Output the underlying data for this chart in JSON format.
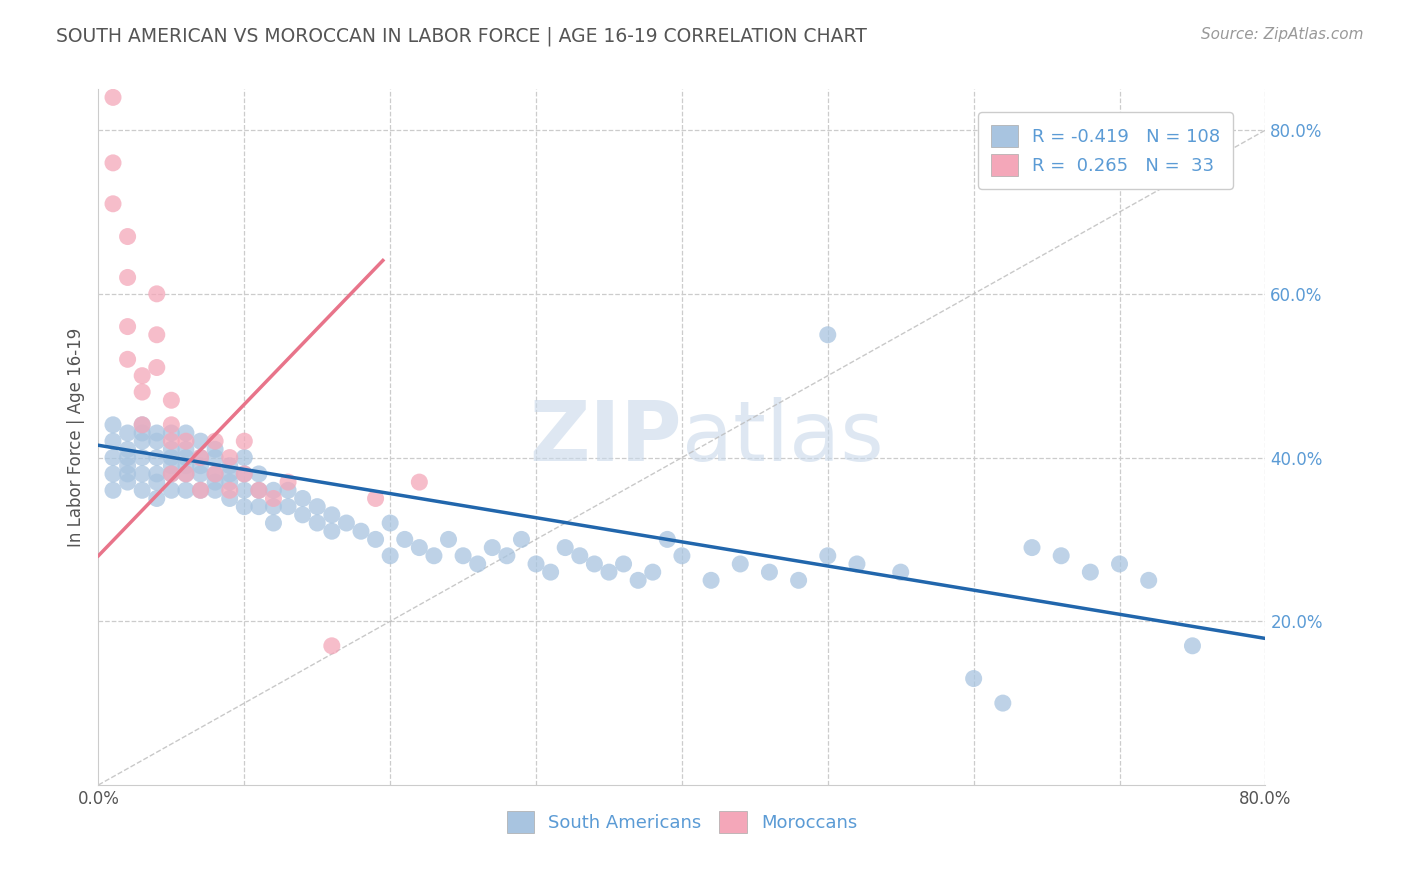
{
  "title": "SOUTH AMERICAN VS MOROCCAN IN LABOR FORCE | AGE 16-19 CORRELATION CHART",
  "source_text": "Source: ZipAtlas.com",
  "ylabel": "In Labor Force | Age 16-19",
  "xlim": [
    0.0,
    0.8
  ],
  "ylim": [
    0.0,
    0.85
  ],
  "legend_R1": "-0.419",
  "legend_N1": "108",
  "legend_R2": "0.265",
  "legend_N2": "33",
  "blue_color": "#a8c4e0",
  "pink_color": "#f4a7b9",
  "blue_line_color": "#2166ac",
  "pink_line_color": "#e8748a",
  "title_color": "#555555",
  "source_color": "#999999",
  "watermark_color": "#c8d8ea",
  "blue_regression": {
    "intercept": 0.415,
    "slope": -0.295
  },
  "pink_regression": {
    "intercept": 0.28,
    "slope": 1.85
  },
  "pink_line_xmax": 0.195,
  "south_americans_x": [
    0.01,
    0.01,
    0.01,
    0.01,
    0.01,
    0.02,
    0.02,
    0.02,
    0.02,
    0.02,
    0.02,
    0.03,
    0.03,
    0.03,
    0.03,
    0.03,
    0.03,
    0.04,
    0.04,
    0.04,
    0.04,
    0.04,
    0.04,
    0.05,
    0.05,
    0.05,
    0.05,
    0.05,
    0.05,
    0.06,
    0.06,
    0.06,
    0.06,
    0.06,
    0.06,
    0.07,
    0.07,
    0.07,
    0.07,
    0.07,
    0.08,
    0.08,
    0.08,
    0.08,
    0.08,
    0.09,
    0.09,
    0.09,
    0.09,
    0.1,
    0.1,
    0.1,
    0.1,
    0.11,
    0.11,
    0.11,
    0.12,
    0.12,
    0.12,
    0.13,
    0.13,
    0.14,
    0.14,
    0.15,
    0.15,
    0.16,
    0.16,
    0.17,
    0.18,
    0.19,
    0.2,
    0.2,
    0.21,
    0.22,
    0.23,
    0.24,
    0.25,
    0.26,
    0.27,
    0.28,
    0.29,
    0.3,
    0.31,
    0.32,
    0.33,
    0.34,
    0.35,
    0.36,
    0.37,
    0.38,
    0.39,
    0.4,
    0.42,
    0.44,
    0.46,
    0.48,
    0.5,
    0.5,
    0.52,
    0.55,
    0.6,
    0.62,
    0.64,
    0.66,
    0.68,
    0.7,
    0.72,
    0.75
  ],
  "south_americans_y": [
    0.42,
    0.4,
    0.38,
    0.36,
    0.44,
    0.41,
    0.39,
    0.37,
    0.43,
    0.4,
    0.38,
    0.42,
    0.4,
    0.38,
    0.36,
    0.44,
    0.43,
    0.4,
    0.38,
    0.37,
    0.35,
    0.42,
    0.43,
    0.4,
    0.38,
    0.36,
    0.43,
    0.41,
    0.39,
    0.4,
    0.38,
    0.36,
    0.41,
    0.39,
    0.43,
    0.39,
    0.38,
    0.36,
    0.4,
    0.42,
    0.38,
    0.36,
    0.4,
    0.41,
    0.37,
    0.37,
    0.39,
    0.35,
    0.38,
    0.38,
    0.36,
    0.34,
    0.4,
    0.36,
    0.38,
    0.34,
    0.36,
    0.34,
    0.32,
    0.34,
    0.36,
    0.33,
    0.35,
    0.32,
    0.34,
    0.31,
    0.33,
    0.32,
    0.31,
    0.3,
    0.28,
    0.32,
    0.3,
    0.29,
    0.28,
    0.3,
    0.28,
    0.27,
    0.29,
    0.28,
    0.3,
    0.27,
    0.26,
    0.29,
    0.28,
    0.27,
    0.26,
    0.27,
    0.25,
    0.26,
    0.3,
    0.28,
    0.25,
    0.27,
    0.26,
    0.25,
    0.28,
    0.55,
    0.27,
    0.26,
    0.13,
    0.1,
    0.29,
    0.28,
    0.26,
    0.27,
    0.25,
    0.17
  ],
  "moroccans_x": [
    0.01,
    0.01,
    0.01,
    0.02,
    0.02,
    0.02,
    0.02,
    0.03,
    0.03,
    0.03,
    0.04,
    0.04,
    0.04,
    0.05,
    0.05,
    0.05,
    0.05,
    0.06,
    0.06,
    0.07,
    0.07,
    0.08,
    0.08,
    0.09,
    0.09,
    0.1,
    0.1,
    0.11,
    0.12,
    0.13,
    0.16,
    0.19,
    0.22
  ],
  "moroccans_y": [
    0.84,
    0.76,
    0.71,
    0.67,
    0.62,
    0.56,
    0.52,
    0.5,
    0.48,
    0.44,
    0.6,
    0.55,
    0.51,
    0.47,
    0.44,
    0.42,
    0.38,
    0.42,
    0.38,
    0.4,
    0.36,
    0.42,
    0.38,
    0.4,
    0.36,
    0.42,
    0.38,
    0.36,
    0.35,
    0.37,
    0.17,
    0.35,
    0.37
  ]
}
